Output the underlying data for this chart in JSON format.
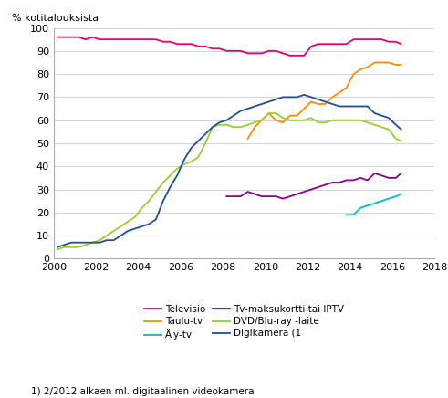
{
  "ylabel": "% kotitalouksista",
  "footnote": "1) 2/2012 alkaen ml. digitaalinen videokamera",
  "xlim": [
    2000,
    2018
  ],
  "ylim": [
    0,
    100
  ],
  "yticks": [
    0,
    10,
    20,
    30,
    40,
    50,
    60,
    70,
    80,
    90,
    100
  ],
  "xticks": [
    2000,
    2002,
    2004,
    2006,
    2008,
    2010,
    2012,
    2014,
    2016,
    2018
  ],
  "series": {
    "Televisio": {
      "color": "#E8006B",
      "lw": 1.3,
      "x": [
        2000.17,
        2000.5,
        2000.83,
        2001.17,
        2001.5,
        2001.83,
        2002.17,
        2002.5,
        2002.83,
        2003.17,
        2003.5,
        2003.83,
        2004.17,
        2004.5,
        2004.83,
        2005.17,
        2005.5,
        2005.83,
        2006.17,
        2006.5,
        2006.83,
        2007.17,
        2007.5,
        2007.83,
        2008.17,
        2008.5,
        2008.83,
        2009.17,
        2009.5,
        2009.83,
        2010.17,
        2010.5,
        2010.83,
        2011.17,
        2011.5,
        2011.83,
        2012.17,
        2012.5,
        2012.83,
        2013.17,
        2013.5,
        2013.83,
        2014.17,
        2014.5,
        2014.83,
        2015.17,
        2015.5,
        2015.83,
        2016.17,
        2016.42
      ],
      "y": [
        96,
        96,
        96,
        96,
        95,
        96,
        95,
        95,
        95,
        95,
        95,
        95,
        95,
        95,
        95,
        94,
        94,
        93,
        93,
        93,
        92,
        92,
        91,
        91,
        90,
        90,
        90,
        89,
        89,
        89,
        90,
        90,
        89,
        88,
        88,
        88,
        92,
        93,
        93,
        93,
        93,
        93,
        95,
        95,
        95,
        95,
        95,
        94,
        94,
        93
      ]
    },
    "Taulu-tv": {
      "color": "#FF8C00",
      "lw": 1.3,
      "x": [
        2009.17,
        2009.5,
        2009.83,
        2010.17,
        2010.5,
        2010.83,
        2011.17,
        2011.5,
        2011.83,
        2012.17,
        2012.5,
        2012.83,
        2013.17,
        2013.5,
        2013.83,
        2014.17,
        2014.5,
        2014.83,
        2015.17,
        2015.5,
        2015.83,
        2016.17,
        2016.42
      ],
      "y": [
        52,
        57,
        60,
        63,
        60,
        59,
        62,
        62,
        65,
        68,
        67,
        67,
        70,
        72,
        74,
        80,
        82,
        83,
        85,
        85,
        85,
        84,
        84
      ]
    },
    "Äly-tv": {
      "color": "#00BFBF",
      "lw": 1.3,
      "x": [
        2013.83,
        2014.17,
        2014.5,
        2014.83,
        2015.17,
        2015.5,
        2015.83,
        2016.17,
        2016.42
      ],
      "y": [
        19,
        19,
        22,
        23,
        24,
        25,
        26,
        27,
        28
      ]
    },
    "Tv-maksukortti tai IPTV": {
      "color": "#8B008B",
      "lw": 1.3,
      "x": [
        2008.17,
        2008.5,
        2008.83,
        2009.17,
        2009.5,
        2009.83,
        2010.17,
        2010.5,
        2010.83,
        2011.17,
        2011.5,
        2011.83,
        2012.17,
        2012.5,
        2012.83,
        2013.17,
        2013.5,
        2013.83,
        2014.17,
        2014.5,
        2014.83,
        2015.17,
        2015.5,
        2015.83,
        2016.17,
        2016.42
      ],
      "y": [
        27,
        27,
        27,
        29,
        28,
        27,
        27,
        27,
        26,
        27,
        28,
        29,
        30,
        31,
        32,
        33,
        33,
        34,
        34,
        35,
        34,
        37,
        36,
        35,
        35,
        37
      ]
    },
    "DVD/Blu-ray -laite": {
      "color": "#9ACD32",
      "lw": 1.3,
      "x": [
        2000.17,
        2000.5,
        2000.83,
        2001.17,
        2001.5,
        2001.83,
        2002.17,
        2002.5,
        2002.83,
        2003.17,
        2003.5,
        2003.83,
        2004.17,
        2004.5,
        2004.83,
        2005.17,
        2005.5,
        2005.83,
        2006.17,
        2006.5,
        2006.83,
        2007.17,
        2007.5,
        2007.83,
        2008.17,
        2008.5,
        2008.83,
        2009.17,
        2009.5,
        2009.83,
        2010.17,
        2010.5,
        2010.83,
        2011.17,
        2011.5,
        2011.83,
        2012.17,
        2012.5,
        2012.83,
        2013.17,
        2013.5,
        2013.83,
        2014.17,
        2014.5,
        2014.83,
        2015.17,
        2015.5,
        2015.83,
        2016.17,
        2016.42
      ],
      "y": [
        4,
        5,
        5,
        5,
        6,
        7,
        8,
        10,
        12,
        14,
        16,
        18,
        22,
        25,
        29,
        33,
        36,
        39,
        41,
        42,
        44,
        50,
        57,
        58,
        58,
        57,
        57,
        58,
        59,
        60,
        63,
        63,
        61,
        60,
        60,
        60,
        61,
        59,
        59,
        60,
        60,
        60,
        60,
        60,
        59,
        58,
        57,
        56,
        52,
        51
      ]
    },
    "Digikamera (1": {
      "color": "#1F4E9A",
      "lw": 1.3,
      "x": [
        2000.17,
        2000.5,
        2000.83,
        2001.17,
        2001.5,
        2001.83,
        2002.17,
        2002.5,
        2002.83,
        2003.17,
        2003.5,
        2003.83,
        2004.17,
        2004.5,
        2004.83,
        2005.17,
        2005.5,
        2005.83,
        2006.17,
        2006.5,
        2006.83,
        2007.17,
        2007.5,
        2007.83,
        2008.17,
        2008.5,
        2008.83,
        2009.17,
        2009.5,
        2009.83,
        2010.17,
        2010.5,
        2010.83,
        2011.17,
        2011.5,
        2011.83,
        2012.17,
        2012.5,
        2012.83,
        2013.17,
        2013.5,
        2013.83,
        2014.17,
        2014.5,
        2014.83,
        2015.17,
        2015.5,
        2015.83,
        2016.17,
        2016.42
      ],
      "y": [
        5,
        6,
        7,
        7,
        7,
        7,
        7,
        8,
        8,
        10,
        12,
        13,
        14,
        15,
        17,
        25,
        31,
        36,
        43,
        48,
        51,
        54,
        57,
        59,
        60,
        62,
        64,
        65,
        66,
        67,
        68,
        69,
        70,
        70,
        70,
        71,
        70,
        69,
        68,
        67,
        66,
        66,
        66,
        66,
        66,
        63,
        62,
        61,
        58,
        56
      ]
    }
  },
  "legend_order": [
    "Televisio",
    "Taulu-tv",
    "Äly-tv",
    "Tv-maksukortti tai IPTV",
    "DVD/Blu-ray -laite",
    "Digikamera (1"
  ],
  "background_color": "#ffffff",
  "grid_color": "#cccccc"
}
